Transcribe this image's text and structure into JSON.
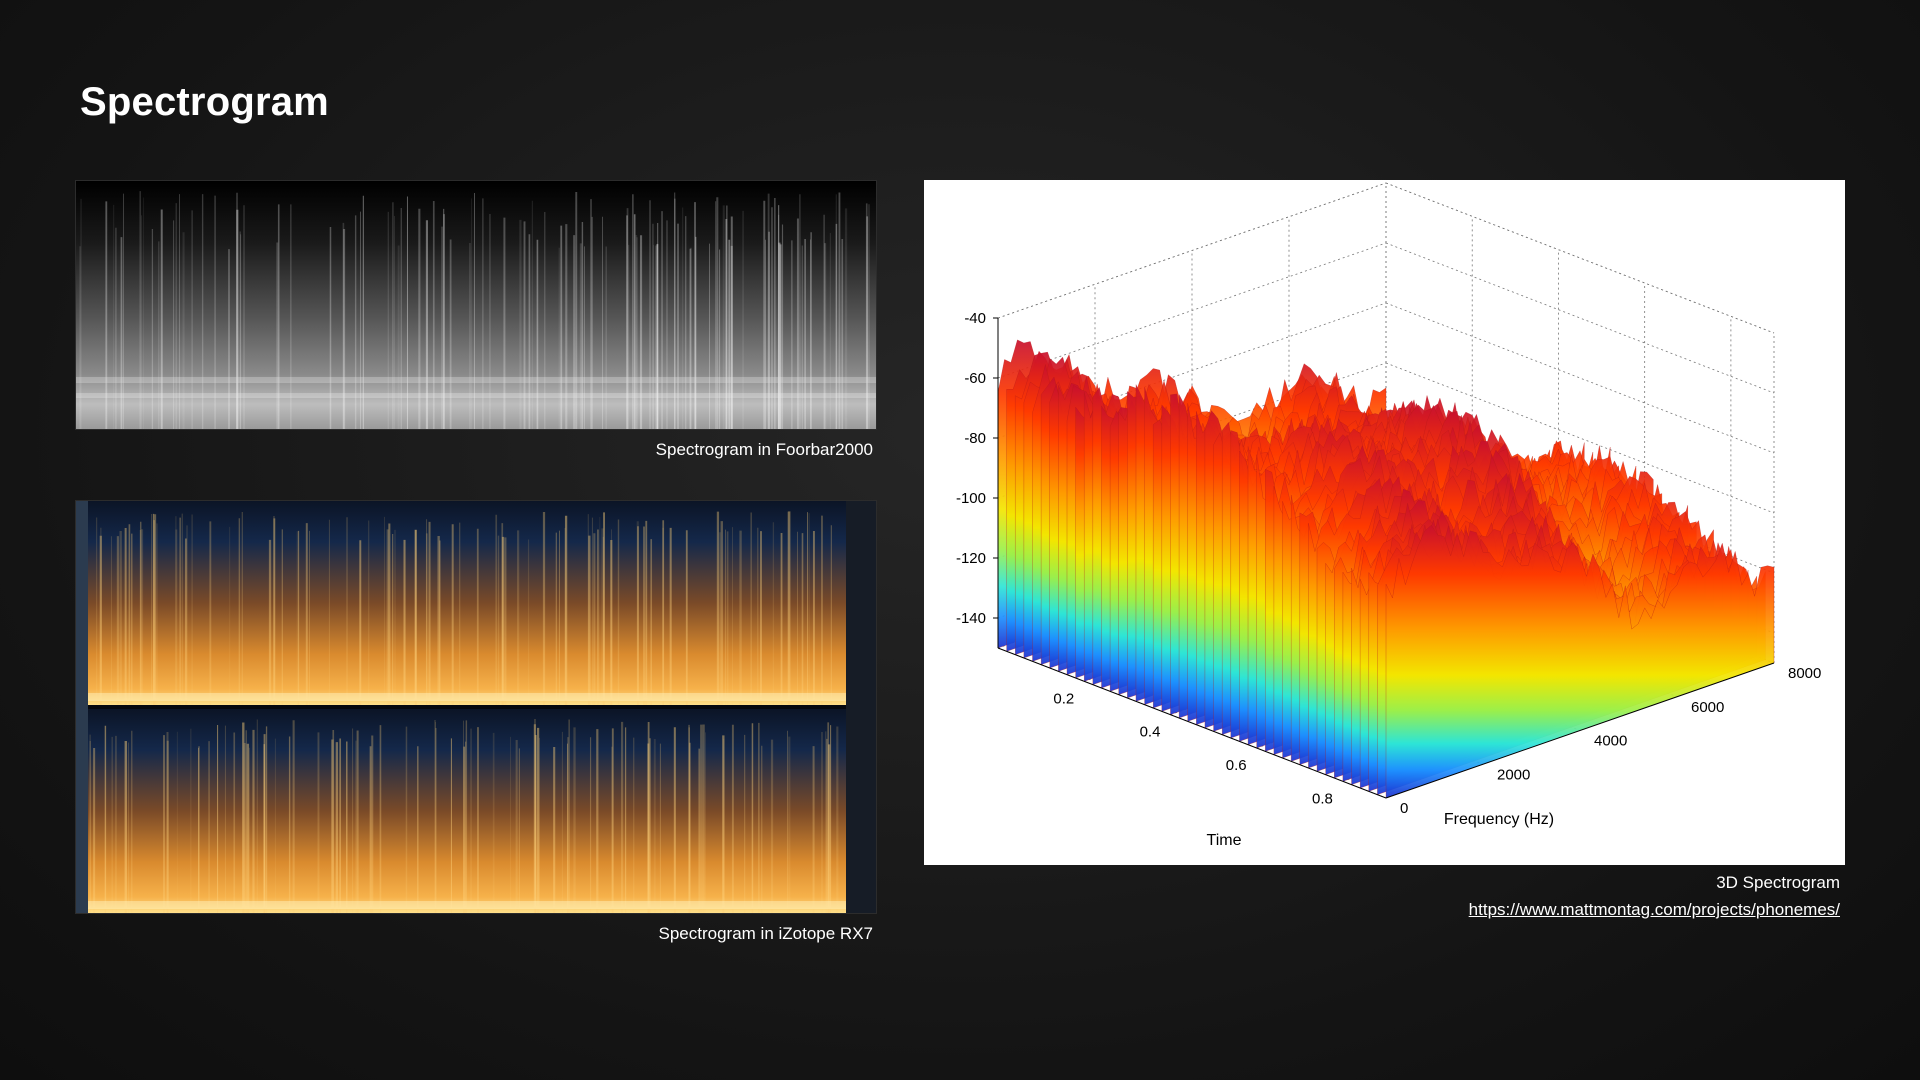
{
  "slide": {
    "title": "Spectrogram"
  },
  "panels": {
    "foobar": {
      "caption": "Spectrogram in Foorbar2000"
    },
    "izotope": {
      "caption": "Spectrogram in iZotope RX7"
    },
    "surface": {
      "caption": "3D Spectrogram",
      "link": "https://www.mattmontag.com/projects/phonemes/"
    }
  },
  "chart_data": {
    "type": "surface",
    "title": "",
    "xlabel": "Frequency (Hz)",
    "ylabel": "Time",
    "zlabel": "",
    "x_ticks": [
      0,
      2000,
      4000,
      6000,
      8000
    ],
    "y_ticks": [
      0.2,
      0.4,
      0.6,
      0.8
    ],
    "z_ticks": [
      -40,
      -60,
      -80,
      -100,
      -120,
      -140
    ],
    "xlim": [
      0,
      8000
    ],
    "ylim": [
      0,
      0.9
    ],
    "zlim": [
      -150,
      -40
    ],
    "colormap": "jet",
    "grid": true
  }
}
